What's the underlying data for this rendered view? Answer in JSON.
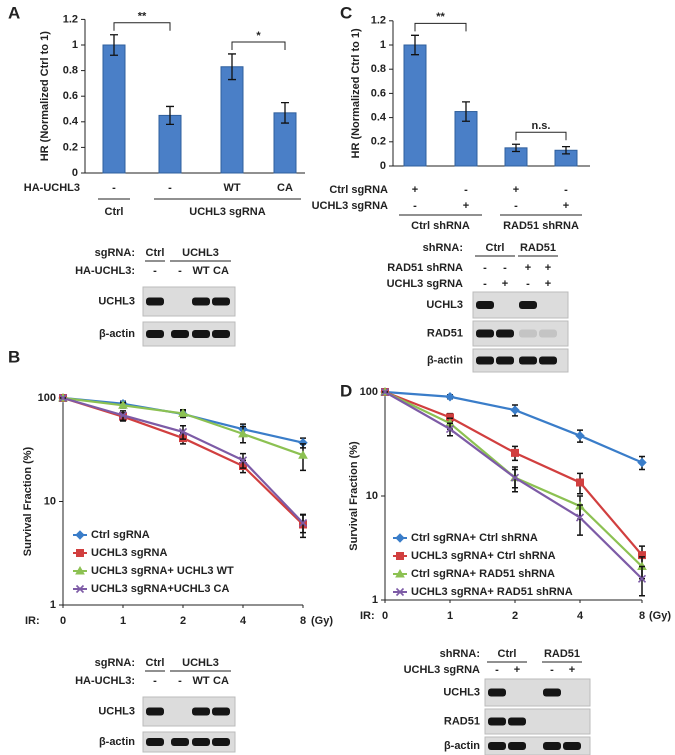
{
  "panels": [
    "A",
    "B",
    "C",
    "D"
  ],
  "chart_data": [
    {
      "type": "bar",
      "ylabel": "HR (Normalized Ctrl to 1)",
      "color": "#4a7fc7",
      "category_rows": [
        {
          "label": "HA-UCHL3",
          "labels": [
            "-",
            "-",
            "WT",
            "CA"
          ]
        }
      ],
      "groups": [
        "Ctrl",
        "UCHL3 sgRNA"
      ],
      "values": [
        1,
        0.45,
        0.83,
        0.47
      ],
      "errors": [
        0.08,
        0.07,
        0.1,
        0.08
      ],
      "ylim": [
        0,
        1.2
      ],
      "yticks": [
        0,
        0.2,
        0.4,
        0.6,
        0.8,
        1,
        1.2
      ],
      "annotations": [
        {
          "text": "**",
          "between": [
            0,
            1
          ]
        },
        {
          "text": "*",
          "between": [
            2,
            3
          ]
        }
      ]
    },
    {
      "type": "line",
      "log_scale": true,
      "ylabel": "Survival Fraction (%)",
      "xlabel": "IR:",
      "xunit": "(Gy)",
      "categories": [
        "0",
        "1",
        "2",
        "4",
        "8"
      ],
      "ylim": [
        1,
        100
      ],
      "yticks": [
        1,
        10,
        100
      ],
      "series": [
        {
          "name": "Ctrl sgRNA",
          "color": "#3a7dc9",
          "marker": "diamond",
          "values": [
            100,
            88,
            70,
            50,
            37
          ],
          "errors": [
            0,
            5,
            5,
            6,
            4
          ]
        },
        {
          "name": "UCHL3 sgRNA",
          "color": "#d13f3f",
          "marker": "square",
          "values": [
            100,
            66,
            41,
            22,
            6
          ],
          "errors": [
            0,
            6,
            5,
            3,
            1.5
          ]
        },
        {
          "name": "UCHL3 sgRNA+ UCHL3 WT",
          "color": "#8cc152",
          "marker": "triangle",
          "values": [
            100,
            85,
            71,
            45,
            28
          ],
          "errors": [
            0,
            5,
            6,
            8,
            8
          ]
        },
        {
          "name": "UCHL3 sgRNA+UCHL3 CA",
          "color": "#7d5ba6",
          "marker": "x",
          "values": [
            100,
            68,
            47,
            25,
            6.2
          ],
          "errors": [
            0,
            7,
            7,
            4,
            1.2
          ]
        }
      ]
    },
    {
      "type": "bar",
      "ylabel": "HR (Normalized Ctrl to 1)",
      "color": "#4a7fc7",
      "category_rows": [
        {
          "label": "Ctrl sgRNA",
          "labels": [
            "+",
            "-",
            "+",
            "-"
          ]
        },
        {
          "label": "UCHL3 sgRNA",
          "labels": [
            "-",
            "+",
            "-",
            "+"
          ]
        }
      ],
      "groups": [
        "Ctrl shRNA",
        "RAD51 shRNA"
      ],
      "values": [
        1,
        0.45,
        0.15,
        0.13
      ],
      "errors": [
        0.08,
        0.08,
        0.03,
        0.03
      ],
      "ylim": [
        0,
        1.2
      ],
      "yticks": [
        0,
        0.2,
        0.4,
        0.6,
        0.8,
        1,
        1.2
      ],
      "annotations": [
        {
          "text": "**",
          "between": [
            0,
            1
          ]
        },
        {
          "text": "n.s.",
          "between": [
            2,
            3
          ]
        }
      ]
    },
    {
      "type": "line",
      "log_scale": true,
      "ylabel": "Survival Fraction (%)",
      "xlabel": "IR:",
      "xunit": "(Gy)",
      "categories": [
        "0",
        "1",
        "2",
        "4",
        "8"
      ],
      "ylim": [
        1,
        100
      ],
      "yticks": [
        1,
        10,
        100
      ],
      "series": [
        {
          "name": "Ctrl sgRNA+ Ctrl shRNA",
          "color": "#3a7dc9",
          "marker": "diamond",
          "values": [
            100,
            90,
            67,
            38,
            21
          ],
          "errors": [
            0,
            4,
            8,
            5,
            3
          ]
        },
        {
          "name": "UCHL3 sgRNA+ Ctrl shRNA",
          "color": "#d13f3f",
          "marker": "square",
          "values": [
            100,
            57,
            26,
            13.5,
            2.7
          ],
          "errors": [
            0,
            5,
            4,
            3,
            0.6
          ]
        },
        {
          "name": "Ctrl sgRNA+ RAD51 shRNA",
          "color": "#8cc152",
          "marker": "triangle",
          "values": [
            100,
            50,
            15,
            8,
            2.1
          ],
          "errors": [
            0,
            6,
            3,
            2,
            0.5
          ]
        },
        {
          "name": "UCHL3 sgRNA+ RAD51 shRNA",
          "color": "#7d5ba6",
          "marker": "x",
          "values": [
            100,
            44,
            15,
            6.2,
            1.6
          ],
          "errors": [
            0,
            6,
            4,
            2,
            0.5
          ]
        }
      ]
    }
  ],
  "blots": [
    {
      "group_label": "sgRNA:",
      "groups": [
        "Ctrl",
        "UCHL3"
      ],
      "lane_rows": [
        {
          "label": "HA-UCHL3:",
          "lanes": [
            "-",
            "-",
            "WT",
            "CA"
          ]
        }
      ],
      "bands": [
        "UCHL3",
        "β-actin"
      ]
    },
    {
      "group_label": "sgRNA:",
      "groups": [
        "Ctrl",
        "UCHL3"
      ],
      "lane_rows": [
        {
          "label": "HA-UCHL3:",
          "lanes": [
            "-",
            "-",
            "WT",
            "CA"
          ]
        }
      ],
      "bands": [
        "UCHL3",
        "β-actin"
      ]
    },
    {
      "group_label": "shRNA:",
      "groups": [
        "Ctrl",
        "RAD51"
      ],
      "lane_rows": [
        {
          "label": "RAD51 shRNA",
          "lanes": [
            "-",
            "-",
            "+",
            "+"
          ]
        },
        {
          "label": "UCHL3 sgRNA",
          "lanes": [
            "-",
            "+",
            "-",
            "+"
          ]
        }
      ],
      "bands": [
        "UCHL3",
        "RAD51",
        "β-actin"
      ]
    },
    {
      "group_label": "shRNA:",
      "groups": [
        "Ctrl",
        "RAD51"
      ],
      "lane_rows": [
        {
          "label": "UCHL3 sgRNA",
          "lanes": [
            "-",
            "+",
            "-",
            "+"
          ]
        }
      ],
      "bands": [
        "UCHL3",
        "RAD51",
        "β-actin"
      ]
    }
  ]
}
